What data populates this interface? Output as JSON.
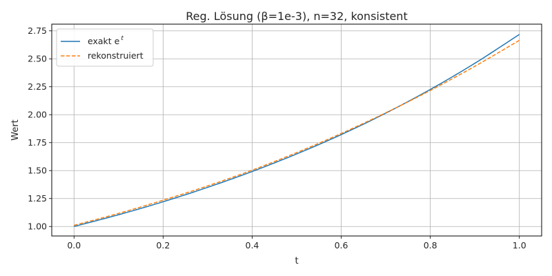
{
  "chart_data": {
    "type": "line",
    "title": "Reg. Lösung (β=1e-3), n=32, konsistent",
    "xlabel": "t",
    "ylabel": "Wert",
    "xlim": [
      -0.05,
      1.05
    ],
    "ylim": [
      0.915,
      2.81
    ],
    "xticks": [
      0.0,
      0.2,
      0.4,
      0.6,
      0.8,
      1.0
    ],
    "xtick_labels": [
      "0.0",
      "0.2",
      "0.4",
      "0.6",
      "0.8",
      "1.0"
    ],
    "yticks": [
      1.0,
      1.25,
      1.5,
      1.75,
      2.0,
      2.25,
      2.5,
      2.75
    ],
    "ytick_labels": [
      "1.00",
      "1.25",
      "1.50",
      "1.75",
      "2.00",
      "2.25",
      "2.50",
      "2.75"
    ],
    "grid": true,
    "legend_position": "top-left",
    "x": [
      0.0,
      0.1,
      0.2,
      0.3,
      0.4,
      0.5,
      0.6,
      0.7,
      0.8,
      0.9,
      1.0
    ],
    "series": [
      {
        "name": "exakt e",
        "name_superscript": "t",
        "style": "solid",
        "color": "#1f77b4",
        "values": [
          1.0,
          1.105,
          1.221,
          1.35,
          1.492,
          1.649,
          1.822,
          2.014,
          2.226,
          2.46,
          2.718
        ]
      },
      {
        "name": "rekonstruiert",
        "style": "dashed",
        "color": "#ff7f0e",
        "values": [
          1.01,
          1.117,
          1.235,
          1.363,
          1.504,
          1.661,
          1.832,
          2.017,
          2.217,
          2.433,
          2.665
        ]
      }
    ]
  }
}
